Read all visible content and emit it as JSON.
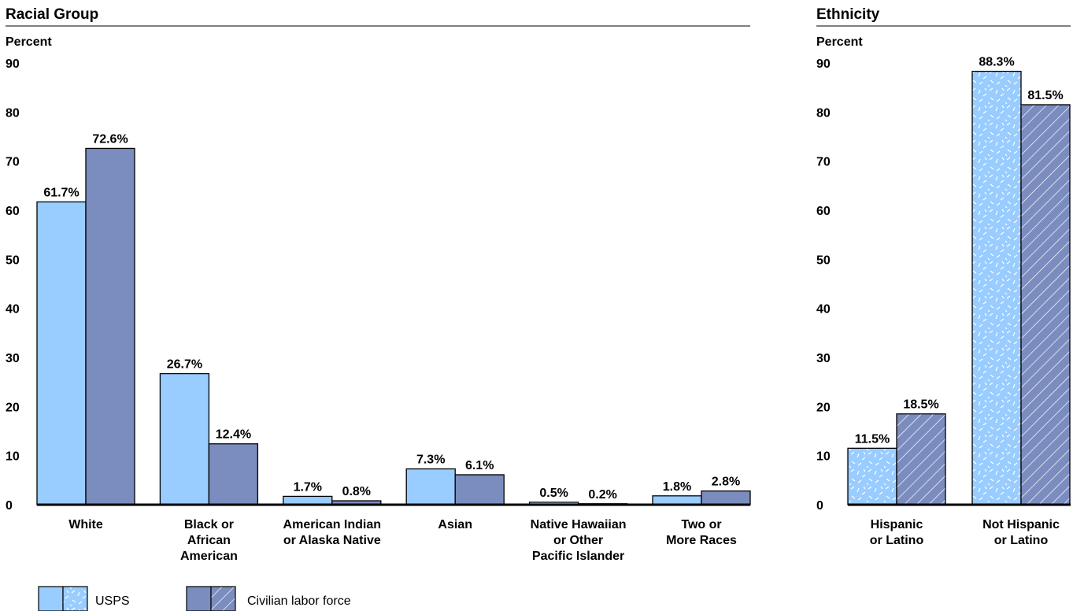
{
  "colors": {
    "usps": "#99ccff",
    "labor_force": "#7b8cbf",
    "pattern_mark": "#ffffff",
    "outline": "#000000"
  },
  "legend": {
    "usps": "USPS",
    "labor_force": "Civilian labor force"
  },
  "chart_data": [
    {
      "type": "bar",
      "title": "Racial Group",
      "ylabel": "Percent",
      "ylim": [
        0,
        90
      ],
      "yticks": [
        0,
        10,
        20,
        30,
        40,
        50,
        60,
        70,
        80,
        90
      ],
      "categories": [
        "White",
        "Black or African American",
        "American Indian or Alaska Native",
        "Asian",
        "Native Hawaiian or Other Pacific Islander",
        "Two or More Races"
      ],
      "category_lines": [
        [
          "White"
        ],
        [
          "Black or",
          "African",
          "American"
        ],
        [
          "American Indian",
          "or Alaska Native"
        ],
        [
          "Asian"
        ],
        [
          "Native Hawaiian",
          "or Other",
          "Pacific Islander"
        ],
        [
          "Two or",
          "More Races"
        ]
      ],
      "series": [
        {
          "name": "USPS",
          "values": [
            61.7,
            26.7,
            1.7,
            7.3,
            0.5,
            1.8
          ],
          "labels": [
            "61.7%",
            "26.7%",
            "1.7%",
            "7.3%",
            "0.5%",
            "1.8%"
          ]
        },
        {
          "name": "Civilian labor force",
          "values": [
            72.6,
            12.4,
            0.8,
            6.1,
            0.2,
            2.8
          ],
          "labels": [
            "72.6%",
            "12.4%",
            "0.8%",
            "6.1%",
            "0.2%",
            "2.8%"
          ]
        }
      ],
      "patterned": false
    },
    {
      "type": "bar",
      "title": "Ethnicity",
      "ylabel": "Percent",
      "ylim": [
        0,
        90
      ],
      "yticks": [
        0,
        10,
        20,
        30,
        40,
        50,
        60,
        70,
        80,
        90
      ],
      "categories": [
        "Hispanic or Latino",
        "Not Hispanic or Latino"
      ],
      "category_lines": [
        [
          "Hispanic",
          "or Latino"
        ],
        [
          "Not Hispanic",
          "or Latino"
        ]
      ],
      "series": [
        {
          "name": "USPS",
          "values": [
            11.5,
            88.3
          ],
          "labels": [
            "11.5%",
            "88.3%"
          ]
        },
        {
          "name": "Civilian labor force",
          "values": [
            18.5,
            81.5
          ],
          "labels": [
            "18.5%",
            "81.5%"
          ]
        }
      ],
      "patterned": true
    }
  ]
}
